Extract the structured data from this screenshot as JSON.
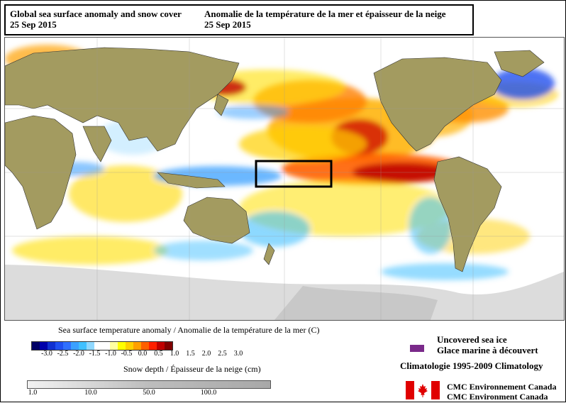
{
  "header": {
    "title_en": "Global sea surface anomaly and snow cover",
    "date_en": "25 Sep 2015",
    "title_fr": "Anomalie de la température de la mer et épaisseur de la neige",
    "date_fr": "25 Sep 2015"
  },
  "map": {
    "highlight_box_color": "#000000",
    "land_color": "#a39b60",
    "ocean_neutral": "#ffffff",
    "snow_color": "#d3d3d3"
  },
  "sst_legend": {
    "title": "Sea surface temperature anomaly / Anomalie de la température de la mer (C)",
    "colors": [
      "#000066",
      "#0000aa",
      "#1030d0",
      "#2050f0",
      "#3070ff",
      "#3aa0ff",
      "#40c0ff",
      "#90d8ff",
      "#ffffff",
      "#ffffff",
      "#ffffa0",
      "#ffff00",
      "#ffd000",
      "#ffa000",
      "#ff6000",
      "#ff2000",
      "#c00000",
      "#800000"
    ],
    "ticks": [
      "-3.0",
      "-2.5",
      "-2.0",
      "-1.5",
      "-1.0",
      "-0.5",
      "0.0",
      "0.5",
      "1.0",
      "1.5",
      "2.0",
      "2.5",
      "3.0"
    ]
  },
  "snow_legend": {
    "title": "Snow depth / Épaisseur de la neige (cm)",
    "ticks": [
      "1.0",
      "10.0",
      "50.0",
      "100.0"
    ]
  },
  "sea_ice": {
    "label_en": "Uncovered sea ice",
    "label_fr": "Glace marine à découvert",
    "color": "#7a2a8a"
  },
  "climatology": "Climatologie 1995-2009 Climatology",
  "credit": {
    "line1": "CMC Environnement Canada",
    "line2": "CMC Environment Canada"
  }
}
